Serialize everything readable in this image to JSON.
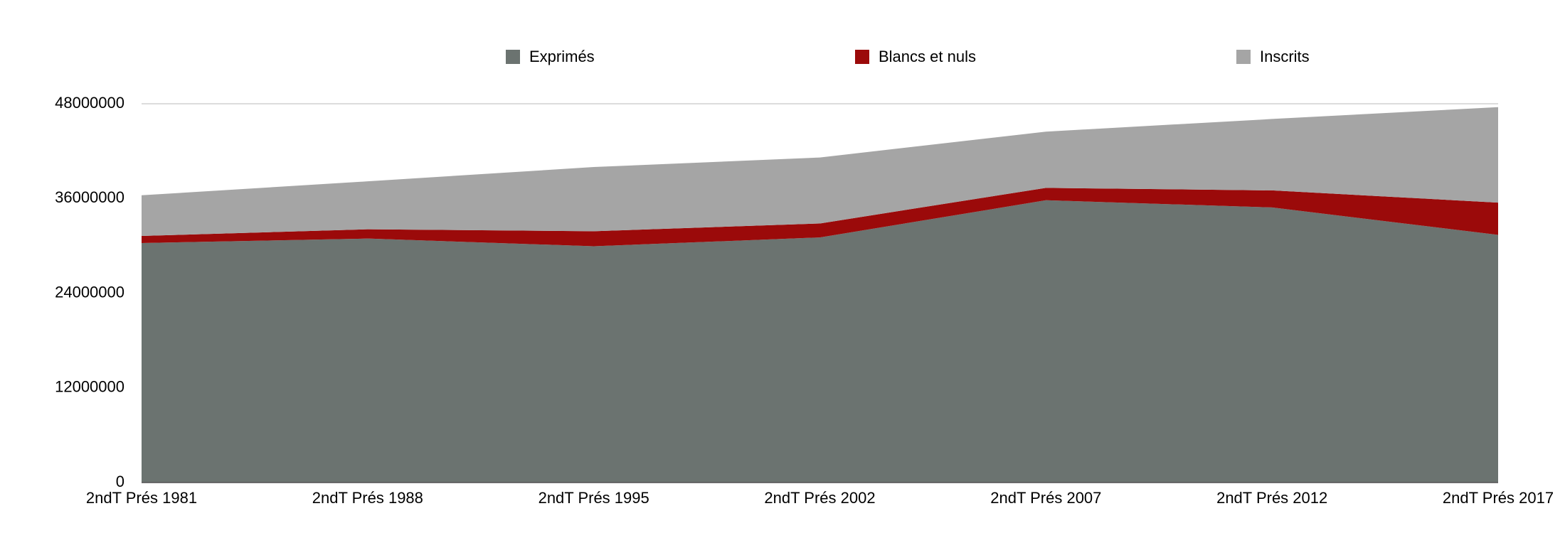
{
  "chart_data": {
    "type": "stacked-area",
    "categories": [
      "2ndT Prés 1981",
      "2ndT Prés 1988",
      "2ndT Prés 1995",
      "2ndT Prés 2002",
      "2ndT Prés 2007",
      "2ndT Prés 2012",
      "2ndT Prés 2017"
    ],
    "series": [
      {
        "name": "Exprimés",
        "color": "#6b7370",
        "values": [
          30350000,
          30920000,
          29940000,
          31060000,
          35770000,
          34860000,
          31380000
        ]
      },
      {
        "name": "Blancs et nuls",
        "color": "#9b0a0a",
        "values": [
          900000,
          1170000,
          1910000,
          1770000,
          1570000,
          2160000,
          4090000
        ]
      },
      {
        "name": "Inscrits",
        "color": "#a5a5a5",
        "values": [
          5150000,
          6080000,
          8130000,
          8360000,
          7130000,
          9050000,
          12100000
        ]
      }
    ],
    "ylim": [
      0,
      48000000
    ],
    "yticks": [
      0,
      12000000,
      24000000,
      36000000,
      48000000
    ],
    "grid": true,
    "legend": "top"
  }
}
